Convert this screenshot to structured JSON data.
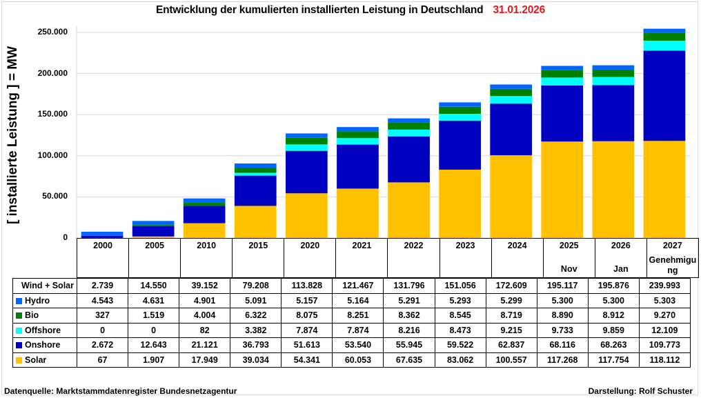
{
  "chart_data": {
    "type": "bar",
    "stacked": true,
    "title": "Entwicklung der kumulierten installierten Leistung in Deutschland",
    "title_date": "31.01.2026",
    "xlabel": "",
    "ylabel": "[ installierte Leistung ] = MW",
    "ylim": [
      0,
      250000
    ],
    "yticks": [
      0,
      50000,
      100000,
      150000,
      200000,
      250000
    ],
    "ytick_labels": [
      "0",
      "50.000",
      "100.000",
      "150.000",
      "200.000",
      "250.000"
    ],
    "grid": true,
    "categories": [
      "2000",
      "2005",
      "2010",
      "2015",
      "2020",
      "2021",
      "2022",
      "2023",
      "2024",
      "2025",
      "2026",
      "2027"
    ],
    "category_sublabels": [
      "",
      "",
      "",
      "",
      "",
      "",
      "",
      "",
      "",
      "Nov",
      "Jan",
      "Genehmigung"
    ],
    "stack_order_bottom_to_top": [
      "Solar",
      "Onshore",
      "Offshore",
      "Bio",
      "Hydro"
    ],
    "series": [
      {
        "name": "Solar",
        "color": "#ffc000",
        "values": [
          67,
          1907,
          17949,
          39034,
          54341,
          60053,
          67635,
          83062,
          100557,
          117268,
          117754,
          118112
        ],
        "labels": [
          "67",
          "1.907",
          "17.949",
          "39.034",
          "54.341",
          "60.053",
          "67.635",
          "83.062",
          "100.557",
          "117.268",
          "117.754",
          "118.112"
        ]
      },
      {
        "name": "Onshore",
        "color": "#0000c0",
        "values": [
          2672,
          12643,
          21121,
          36793,
          51613,
          53540,
          55945,
          59522,
          62837,
          68116,
          68263,
          109773
        ],
        "labels": [
          "2.672",
          "12.643",
          "21.121",
          "36.793",
          "51.613",
          "53.540",
          "55.945",
          "59.522",
          "62.837",
          "68.116",
          "68.263",
          "109.773"
        ]
      },
      {
        "name": "Offshore",
        "color": "#00ffff",
        "values": [
          0,
          0,
          82,
          3382,
          7874,
          7874,
          8216,
          8473,
          9215,
          9733,
          9859,
          12109
        ],
        "labels": [
          "0",
          "0",
          "82",
          "3.382",
          "7.874",
          "7.874",
          "8.216",
          "8.473",
          "9.215",
          "9.733",
          "9.859",
          "12.109"
        ]
      },
      {
        "name": "Bio",
        "color": "#008000",
        "values": [
          327,
          1519,
          4004,
          6322,
          8075,
          8251,
          8362,
          8545,
          8719,
          8890,
          8912,
          9270
        ],
        "labels": [
          "327",
          "1.519",
          "4.004",
          "6.322",
          "8.075",
          "8.251",
          "8.362",
          "8.545",
          "8.719",
          "8.890",
          "8.912",
          "9.270"
        ]
      },
      {
        "name": "Hydro",
        "color": "#0066ff",
        "values": [
          4543,
          4631,
          4901,
          5091,
          5157,
          5164,
          5291,
          5293,
          5299,
          5300,
          5300,
          5303
        ],
        "labels": [
          "4.543",
          "4.631",
          "4.901",
          "5.091",
          "5.157",
          "5.164",
          "5.291",
          "5.293",
          "5.299",
          "5.300",
          "5.300",
          "5.303"
        ]
      }
    ],
    "table_rows_order": [
      "Wind + Solar",
      "Hydro",
      "Bio",
      "Offshore",
      "Onshore",
      "Solar"
    ],
    "wind_solar": {
      "name": "Wind + Solar",
      "values": [
        2739,
        14550,
        39152,
        79208,
        113828,
        121467,
        131796,
        151056,
        172609,
        195117,
        195876,
        239993
      ],
      "labels": [
        "2.739",
        "14.550",
        "39.152",
        "79.208",
        "113.828",
        "121.467",
        "131.796",
        "151.056",
        "172.609",
        "195.117",
        "195.876",
        "239.993"
      ]
    },
    "legend": "table-left"
  },
  "footer": {
    "source": "Datenquelle: Marktstammdatenregister Bundesnetzagentur",
    "author": "Darstellung:  Rolf Schuster"
  }
}
